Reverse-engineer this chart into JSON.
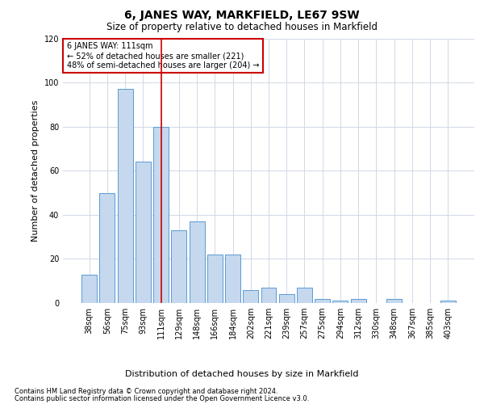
{
  "title": "6, JANES WAY, MARKFIELD, LE67 9SW",
  "subtitle": "Size of property relative to detached houses in Markfield",
  "xlabel": "Distribution of detached houses by size in Markfield",
  "ylabel": "Number of detached properties",
  "categories": [
    "38sqm",
    "56sqm",
    "75sqm",
    "93sqm",
    "111sqm",
    "129sqm",
    "148sqm",
    "166sqm",
    "184sqm",
    "202sqm",
    "221sqm",
    "239sqm",
    "257sqm",
    "275sqm",
    "294sqm",
    "312sqm",
    "330sqm",
    "348sqm",
    "367sqm",
    "385sqm",
    "403sqm"
  ],
  "values": [
    13,
    50,
    97,
    64,
    80,
    33,
    37,
    22,
    22,
    6,
    7,
    4,
    7,
    2,
    1,
    2,
    0,
    2,
    0,
    0,
    1
  ],
  "bar_color": "#c5d8ed",
  "bar_edge_color": "#5b9bd5",
  "vline_x_index": 4,
  "vline_color": "#cc0000",
  "annotation_text": "6 JANES WAY: 111sqm\n← 52% of detached houses are smaller (221)\n48% of semi-detached houses are larger (204) →",
  "annotation_box_color": "#ffffff",
  "annotation_box_edge_color": "#cc0000",
  "ylim": [
    0,
    120
  ],
  "yticks": [
    0,
    20,
    40,
    60,
    80,
    100,
    120
  ],
  "footer_line1": "Contains HM Land Registry data © Crown copyright and database right 2024.",
  "footer_line2": "Contains public sector information licensed under the Open Government Licence v3.0.",
  "bg_color": "#ffffff",
  "grid_color": "#d0d8e8",
  "title_fontsize": 10,
  "subtitle_fontsize": 8.5,
  "ylabel_fontsize": 8,
  "xlabel_fontsize": 8,
  "tick_fontsize": 7,
  "annotation_fontsize": 7,
  "footer_fontsize": 6
}
